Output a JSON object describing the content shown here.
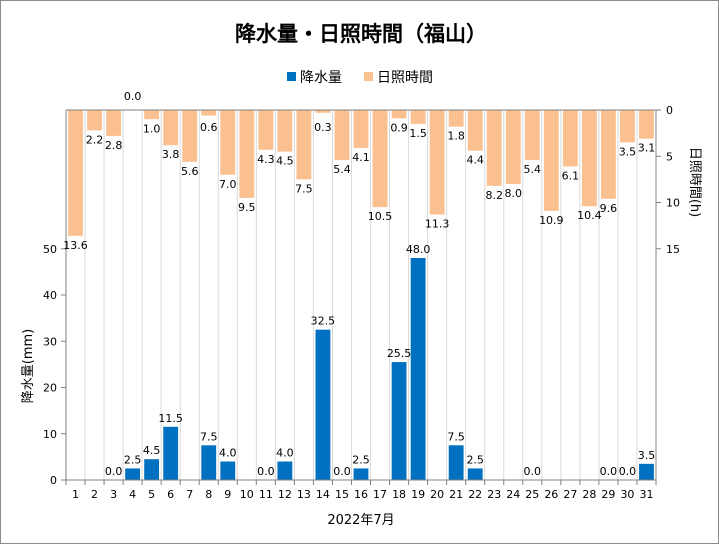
{
  "chart_data": {
    "type": "bar",
    "title": "降水量・日照時間（福山）",
    "xlabel": "2022年7月",
    "categories": [
      "1",
      "2",
      "3",
      "4",
      "5",
      "6",
      "7",
      "8",
      "9",
      "10",
      "11",
      "12",
      "13",
      "14",
      "15",
      "16",
      "17",
      "18",
      "19",
      "20",
      "21",
      "22",
      "23",
      "24",
      "25",
      "26",
      "27",
      "28",
      "29",
      "30",
      "31"
    ],
    "legend_position": "top-center",
    "series": [
      {
        "name": "降水量",
        "axis": "left",
        "color": "#0070C0",
        "values": [
          null,
          null,
          0.0,
          2.5,
          4.5,
          11.5,
          null,
          7.5,
          4.0,
          null,
          0.0,
          4.0,
          null,
          32.5,
          0.0,
          2.5,
          null,
          25.5,
          48.0,
          null,
          7.5,
          2.5,
          null,
          null,
          0.0,
          null,
          null,
          null,
          0.0,
          0.0,
          3.5
        ],
        "labels": [
          "",
          "",
          "0.0",
          "2.5",
          "4.5",
          "11.5",
          "",
          "7.5",
          "4.0",
          "",
          "0.0",
          "4.0",
          "",
          "32.5",
          "0.0",
          "2.5",
          "",
          "25.5",
          "48.0",
          "",
          "7.5",
          "2.5",
          "",
          "",
          "0.0",
          "",
          "",
          "",
          "0.0",
          "0.0",
          "3.5"
        ]
      },
      {
        "name": "日照時間",
        "axis": "right",
        "color": "#FAC090",
        "values": [
          13.6,
          2.2,
          2.8,
          0.0,
          1.0,
          3.8,
          5.6,
          0.6,
          7.0,
          9.5,
          4.3,
          4.5,
          7.5,
          0.3,
          5.4,
          4.1,
          10.5,
          0.9,
          1.5,
          11.3,
          1.8,
          4.4,
          8.2,
          8.0,
          5.4,
          10.9,
          6.1,
          10.4,
          9.6,
          3.5,
          3.1
        ],
        "labels": [
          "13.6",
          "2.2",
          "2.8",
          "0.0",
          "1.0",
          "3.8",
          "5.6",
          "0.6",
          "7.0",
          "9.5",
          "4.3",
          "4.5",
          "7.5",
          "0.3",
          "5.4",
          "4.1",
          "10.5",
          "0.9",
          "1.5",
          "11.3",
          "1.8",
          "4.4",
          "8.2",
          "8.0",
          "5.4",
          "10.9",
          "6.1",
          "10.4",
          "9.6",
          "3.5",
          "3.1"
        ]
      }
    ],
    "left_axis": {
      "label": "降水量(mm)",
      "ylim": [
        0,
        80
      ],
      "ticks": [
        0,
        10,
        20,
        30,
        40,
        50
      ]
    },
    "right_axis": {
      "label": "日照時間(h)",
      "ylim": [
        0,
        40
      ],
      "reversed": true,
      "ticks": [
        0,
        5,
        10,
        15
      ]
    },
    "grid": "vertical"
  }
}
